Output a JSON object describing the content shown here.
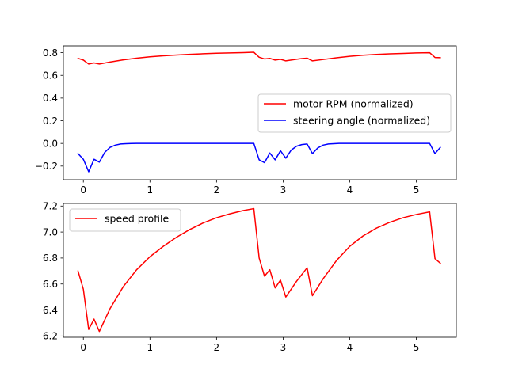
{
  "chart_data": [
    {
      "type": "line",
      "title": "",
      "xlabel": "",
      "ylabel": "",
      "xlim": [
        -0.3,
        5.6
      ],
      "ylim": [
        -0.32,
        0.86
      ],
      "xticks": [
        0,
        1,
        2,
        3,
        4,
        5
      ],
      "yticks": [
        -0.2,
        0.0,
        0.2,
        0.4,
        0.6,
        0.8
      ],
      "ytick_labels": [
        "−0.2",
        "0.0",
        "0.2",
        "0.4",
        "0.6",
        "0.8"
      ],
      "grid": false,
      "legend_position": "center-right",
      "series": [
        {
          "name": "motor RPM (normalized)",
          "color": "#ff0000",
          "x": [
            -0.08,
            0.0,
            0.08,
            0.16,
            0.24,
            0.4,
            0.6,
            0.8,
            1.0,
            1.2,
            1.4,
            1.6,
            1.8,
            2.0,
            2.2,
            2.4,
            2.56,
            2.64,
            2.72,
            2.8,
            2.88,
            2.96,
            3.04,
            3.12,
            3.2,
            3.28,
            3.36,
            3.44,
            3.6,
            3.8,
            4.0,
            4.2,
            4.4,
            4.6,
            4.8,
            5.0,
            5.2,
            5.28,
            5.36
          ],
          "y": [
            0.75,
            0.735,
            0.7,
            0.71,
            0.7,
            0.718,
            0.737,
            0.752,
            0.764,
            0.773,
            0.78,
            0.786,
            0.791,
            0.795,
            0.798,
            0.801,
            0.804,
            0.76,
            0.745,
            0.75,
            0.735,
            0.742,
            0.728,
            0.735,
            0.742,
            0.748,
            0.752,
            0.728,
            0.74,
            0.755,
            0.768,
            0.778,
            0.785,
            0.79,
            0.794,
            0.798,
            0.8,
            0.758,
            0.756
          ]
        },
        {
          "name": "steering angle (normalized)",
          "color": "#0000ff",
          "x": [
            -0.08,
            0.0,
            0.08,
            0.16,
            0.24,
            0.32,
            0.4,
            0.48,
            0.56,
            0.64,
            0.72,
            0.8,
            1.0,
            1.5,
            2.0,
            2.5,
            2.56,
            2.64,
            2.72,
            2.8,
            2.88,
            2.96,
            3.04,
            3.12,
            3.2,
            3.28,
            3.36,
            3.44,
            3.52,
            3.6,
            3.68,
            3.76,
            3.84,
            4.0,
            4.5,
            5.0,
            5.2,
            5.28,
            5.36
          ],
          "y": [
            -0.09,
            -0.14,
            -0.25,
            -0.14,
            -0.165,
            -0.08,
            -0.035,
            -0.015,
            -0.005,
            -0.002,
            -0.001,
            0.0,
            0.0,
            0.0,
            0.0,
            0.0,
            0.0,
            -0.145,
            -0.17,
            -0.085,
            -0.145,
            -0.065,
            -0.13,
            -0.06,
            -0.025,
            -0.01,
            -0.005,
            -0.09,
            -0.04,
            -0.015,
            -0.005,
            -0.002,
            0.0,
            0.0,
            0.0,
            0.0,
            0.0,
            -0.09,
            -0.035
          ]
        }
      ]
    },
    {
      "type": "line",
      "title": "",
      "xlabel": "",
      "ylabel": "",
      "xlim": [
        -0.3,
        5.6
      ],
      "ylim": [
        6.19,
        7.22
      ],
      "xticks": [
        0,
        1,
        2,
        3,
        4,
        5
      ],
      "yticks": [
        6.2,
        6.4,
        6.6,
        6.8,
        7.0,
        7.2
      ],
      "ytick_labels": [
        "6.2",
        "6.4",
        "6.6",
        "6.8",
        "7.0",
        "7.2"
      ],
      "grid": false,
      "legend_position": "top-left",
      "series": [
        {
          "name": "speed profile",
          "color": "#ff0000",
          "x": [
            -0.08,
            0.0,
            0.08,
            0.16,
            0.24,
            0.4,
            0.6,
            0.8,
            1.0,
            1.2,
            1.4,
            1.6,
            1.8,
            2.0,
            2.2,
            2.4,
            2.56,
            2.64,
            2.72,
            2.8,
            2.88,
            2.96,
            3.04,
            3.2,
            3.36,
            3.44,
            3.6,
            3.8,
            4.0,
            4.2,
            4.4,
            4.6,
            4.8,
            5.0,
            5.2,
            5.28,
            5.36
          ],
          "y": [
            6.7,
            6.56,
            6.25,
            6.33,
            6.235,
            6.41,
            6.58,
            6.71,
            6.81,
            6.89,
            6.96,
            7.02,
            7.07,
            7.11,
            7.14,
            7.165,
            7.18,
            6.8,
            6.66,
            6.71,
            6.57,
            6.63,
            6.5,
            6.62,
            6.725,
            6.51,
            6.64,
            6.78,
            6.89,
            6.97,
            7.03,
            7.075,
            7.11,
            7.135,
            7.155,
            6.795,
            6.76
          ]
        }
      ]
    }
  ]
}
